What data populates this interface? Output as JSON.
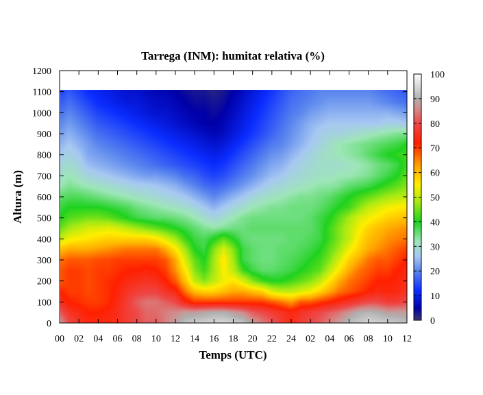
{
  "chart_data": {
    "type": "heatmap",
    "title": "Tarrega (INM): humitat relativa (%)",
    "xlabel": "Temps (UTC)",
    "ylabel": "Altura (m)",
    "x_tick_labels": [
      "00",
      "02",
      "04",
      "06",
      "08",
      "10",
      "12",
      "14",
      "16",
      "18",
      "20",
      "22",
      "24",
      "02",
      "04",
      "06",
      "08",
      "10",
      "12"
    ],
    "x_range_hours": [
      0,
      36
    ],
    "y_ticks": [
      0,
      100,
      200,
      300,
      400,
      500,
      600,
      700,
      800,
      900,
      1000,
      1100,
      1200
    ],
    "ylim": [
      0,
      1200
    ],
    "data_top_m": 1110,
    "colorbar": {
      "range": [
        0,
        100
      ],
      "ticks": [
        0,
        10,
        20,
        30,
        40,
        50,
        60,
        70,
        80,
        90,
        100
      ],
      "stops": [
        {
          "v": 0,
          "color": "#3a3a6e"
        },
        {
          "v": 5,
          "color": "#0000a8"
        },
        {
          "v": 12,
          "color": "#0a2cff"
        },
        {
          "v": 20,
          "color": "#5a86ee"
        },
        {
          "v": 26,
          "color": "#a7c8f2"
        },
        {
          "v": 32,
          "color": "#9ee6b8"
        },
        {
          "v": 40,
          "color": "#1fd21f"
        },
        {
          "v": 48,
          "color": "#a6ea14"
        },
        {
          "v": 55,
          "color": "#ffee00"
        },
        {
          "v": 62,
          "color": "#ffac00"
        },
        {
          "v": 72,
          "color": "#ff2000"
        },
        {
          "v": 80,
          "color": "#ee4848"
        },
        {
          "v": 86,
          "color": "#d28c8c"
        },
        {
          "v": 90,
          "color": "#b0b0b0"
        },
        {
          "v": 100,
          "color": "#ffffff"
        }
      ]
    },
    "relative_humidity_grid": {
      "hours": [
        0,
        1,
        2,
        3,
        4,
        5,
        6,
        7,
        8,
        9,
        10,
        11,
        12,
        13,
        14,
        15,
        16,
        17,
        18,
        19,
        20,
        21,
        22,
        23,
        24,
        25,
        26,
        27,
        28,
        29,
        30,
        31,
        32,
        33,
        34,
        35,
        36
      ],
      "heights_m": [
        0,
        50,
        100,
        150,
        200,
        250,
        300,
        350,
        400,
        450,
        500,
        550,
        600,
        650,
        700,
        750,
        800,
        850,
        900,
        950,
        1000,
        1050,
        1100
      ],
      "values": [
        [
          88,
          80,
          76,
          74,
          74,
          74,
          75,
          78,
          80,
          82,
          82,
          85,
          88,
          92,
          94,
          94,
          95,
          95,
          94,
          93,
          88,
          85,
          82,
          78,
          74,
          78,
          80,
          82,
          85,
          88,
          92,
          93,
          95,
          94,
          94,
          93,
          92
        ],
        [
          82,
          76,
          74,
          72,
          72,
          73,
          75,
          78,
          80,
          83,
          83,
          85,
          86,
          88,
          88,
          89,
          90,
          90,
          88,
          86,
          82,
          80,
          78,
          76,
          74,
          76,
          78,
          80,
          82,
          84,
          87,
          90,
          91,
          90,
          88,
          88,
          88
        ],
        [
          75,
          72,
          71,
          70,
          70,
          71,
          74,
          78,
          82,
          84,
          84,
          82,
          80,
          74,
          70,
          70,
          70,
          70,
          70,
          70,
          70,
          70,
          68,
          66,
          63,
          68,
          68,
          70,
          72,
          74,
          76,
          78,
          80,
          80,
          78,
          78,
          80
        ],
        [
          72,
          70,
          70,
          69,
          70,
          71,
          73,
          76,
          78,
          79,
          79,
          76,
          74,
          66,
          60,
          58,
          58,
          60,
          62,
          62,
          60,
          58,
          52,
          50,
          50,
          52,
          54,
          58,
          62,
          66,
          68,
          70,
          72,
          74,
          73,
          74,
          76
        ],
        [
          68,
          70,
          70,
          69,
          70,
          71,
          72,
          74,
          75,
          76,
          75,
          72,
          68,
          60,
          50,
          46,
          50,
          54,
          56,
          52,
          46,
          42,
          40,
          40,
          42,
          44,
          46,
          50,
          56,
          62,
          66,
          68,
          70,
          72,
          72,
          73,
          75
        ],
        [
          68,
          70,
          70,
          69,
          70,
          70,
          71,
          72,
          72,
          73,
          72,
          70,
          64,
          56,
          46,
          42,
          48,
          55,
          50,
          42,
          38,
          36,
          36,
          37,
          38,
          40,
          42,
          44,
          50,
          56,
          62,
          66,
          68,
          70,
          70,
          72,
          74
        ],
        [
          66,
          68,
          68,
          68,
          69,
          69,
          70,
          70,
          70,
          70,
          70,
          68,
          62,
          52,
          44,
          40,
          48,
          56,
          48,
          38,
          36,
          35,
          35,
          36,
          37,
          38,
          40,
          42,
          46,
          52,
          58,
          62,
          66,
          68,
          68,
          70,
          72
        ],
        [
          60,
          62,
          62,
          62,
          63,
          64,
          65,
          66,
          66,
          66,
          66,
          62,
          56,
          48,
          40,
          38,
          46,
          52,
          46,
          38,
          36,
          35,
          35,
          36,
          36,
          37,
          38,
          40,
          44,
          48,
          54,
          58,
          62,
          64,
          66,
          68,
          70
        ],
        [
          50,
          54,
          55,
          56,
          57,
          58,
          58,
          58,
          58,
          58,
          56,
          52,
          48,
          42,
          38,
          37,
          40,
          44,
          40,
          36,
          35,
          35,
          35,
          35,
          36,
          36,
          37,
          38,
          42,
          46,
          50,
          56,
          60,
          62,
          64,
          65,
          66
        ],
        [
          44,
          48,
          50,
          52,
          52,
          53,
          52,
          50,
          48,
          46,
          44,
          42,
          40,
          38,
          36,
          34,
          33,
          34,
          35,
          35,
          36,
          36,
          36,
          36,
          36,
          36,
          36,
          38,
          42,
          46,
          50,
          54,
          58,
          60,
          62,
          63,
          64
        ],
        [
          40,
          43,
          44,
          45,
          45,
          44,
          42,
          40,
          38,
          37,
          36,
          36,
          35,
          34,
          32,
          30,
          28,
          30,
          32,
          34,
          35,
          35,
          35,
          35,
          35,
          35,
          36,
          38,
          40,
          44,
          48,
          52,
          54,
          56,
          58,
          59,
          60
        ],
        [
          38,
          40,
          40,
          40,
          40,
          39,
          38,
          37,
          35,
          34,
          33,
          32,
          31,
          30,
          28,
          26,
          24,
          26,
          28,
          30,
          32,
          33,
          34,
          34,
          35,
          35,
          35,
          36,
          38,
          40,
          42,
          46,
          50,
          52,
          54,
          55,
          56
        ],
        [
          36,
          37,
          37,
          36,
          35,
          34,
          33,
          32,
          31,
          30,
          29,
          28,
          27,
          26,
          24,
          22,
          20,
          22,
          24,
          26,
          28,
          30,
          31,
          32,
          33,
          34,
          34,
          35,
          36,
          38,
          40,
          42,
          44,
          46,
          48,
          49,
          50
        ],
        [
          32,
          34,
          33,
          32,
          31,
          30,
          29,
          28,
          27,
          27,
          26,
          25,
          24,
          22,
          20,
          18,
          17,
          18,
          20,
          22,
          24,
          26,
          28,
          29,
          30,
          31,
          32,
          33,
          33,
          34,
          36,
          37,
          38,
          40,
          42,
          44,
          46
        ],
        [
          30,
          32,
          30,
          28,
          27,
          26,
          25,
          24,
          23,
          22,
          22,
          21,
          20,
          18,
          17,
          15,
          14,
          15,
          17,
          19,
          21,
          23,
          25,
          26,
          28,
          29,
          30,
          31,
          31,
          32,
          32,
          33,
          34,
          36,
          38,
          40,
          44
        ],
        [
          28,
          30,
          28,
          25,
          24,
          23,
          22,
          21,
          20,
          19,
          18,
          17,
          16,
          15,
          14,
          13,
          12,
          13,
          15,
          17,
          19,
          21,
          23,
          24,
          26,
          28,
          29,
          30,
          30,
          30,
          31,
          32,
          33,
          35,
          36,
          38,
          42
        ],
        [
          26,
          28,
          26,
          23,
          22,
          21,
          20,
          19,
          18,
          17,
          16,
          15,
          14,
          13,
          12,
          11,
          10,
          11,
          13,
          15,
          17,
          19,
          21,
          22,
          24,
          26,
          28,
          30,
          31,
          32,
          33,
          34,
          36,
          38,
          40,
          41,
          42
        ],
        [
          24,
          26,
          24,
          22,
          20,
          19,
          18,
          17,
          16,
          15,
          14,
          13,
          12,
          11,
          10,
          9,
          8,
          9,
          11,
          13,
          15,
          17,
          19,
          20,
          22,
          24,
          26,
          28,
          30,
          32,
          33,
          34,
          35,
          36,
          37,
          38,
          40
        ],
        [
          22,
          24,
          22,
          20,
          18,
          17,
          16,
          15,
          14,
          13,
          12,
          11,
          10,
          9,
          8,
          7,
          6,
          7,
          9,
          11,
          13,
          15,
          17,
          19,
          21,
          23,
          25,
          27,
          28,
          28,
          29,
          30,
          31,
          32,
          33,
          34,
          34
        ],
        [
          20,
          22,
          20,
          18,
          16,
          15,
          14,
          13,
          12,
          11,
          10,
          9,
          8,
          7,
          6,
          5,
          5,
          6,
          8,
          10,
          12,
          14,
          16,
          18,
          20,
          22,
          24,
          25,
          26,
          26,
          26,
          26,
          26,
          26,
          27,
          27,
          26
        ],
        [
          18,
          20,
          18,
          16,
          14,
          13,
          12,
          11,
          10,
          9,
          8,
          8,
          7,
          6,
          5,
          5,
          4,
          5,
          7,
          9,
          11,
          13,
          15,
          17,
          19,
          20,
          22,
          23,
          24,
          24,
          24,
          24,
          24,
          24,
          24,
          23,
          22
        ],
        [
          16,
          18,
          16,
          14,
          12,
          11,
          10,
          9,
          9,
          8,
          7,
          7,
          6,
          5,
          4,
          4,
          3,
          4,
          6,
          8,
          10,
          12,
          14,
          16,
          18,
          19,
          20,
          21,
          22,
          22,
          22,
          22,
          22,
          21,
          20,
          19,
          18
        ],
        [
          14,
          16,
          14,
          12,
          11,
          10,
          9,
          8,
          8,
          7,
          6,
          6,
          5,
          4,
          3,
          3,
          2,
          3,
          5,
          7,
          9,
          11,
          13,
          15,
          17,
          18,
          19,
          20,
          20,
          20,
          20,
          20,
          20,
          19,
          18,
          17,
          16
        ]
      ]
    }
  }
}
